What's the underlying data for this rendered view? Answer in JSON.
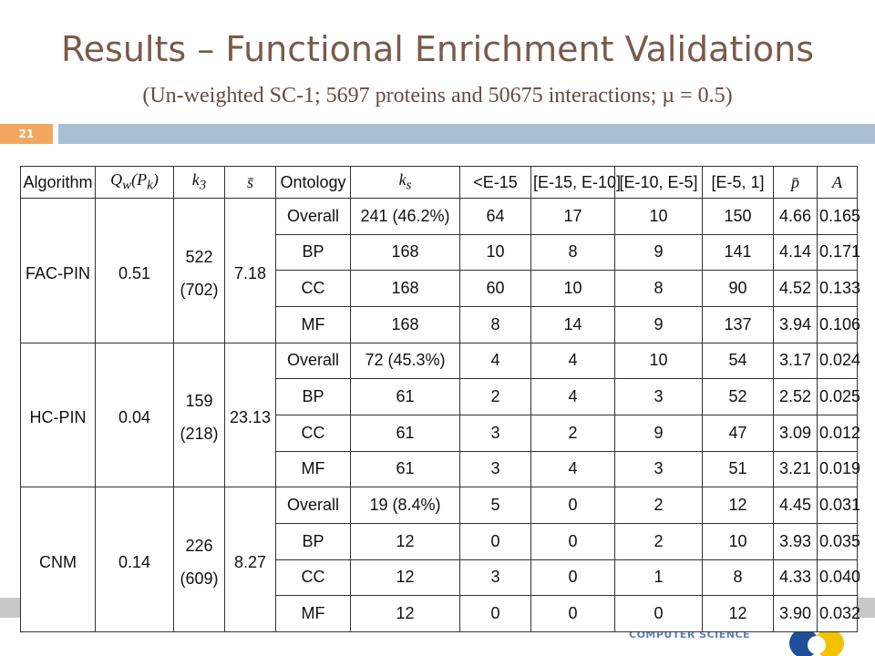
{
  "slide": {
    "title": "Results – Functional Enrichment Validations",
    "subtitle": "(Un-weighted  SC-1;  5697 proteins and 50675 interactions; µ = 0.5)",
    "number": "21",
    "footer_text": "COMPUTER SCIENCE"
  },
  "table": {
    "headers": [
      "Algorithm",
      "Q_w(P_k)",
      "k_3",
      "s̄",
      "Ontology",
      "k_s",
      "<E-15",
      "[E-15, E-10]",
      "[E-10, E-5]",
      "[E-5, 1]",
      "p̄",
      "A"
    ],
    "groups": [
      {
        "algorithm": "FAC-PIN",
        "qw": "0.51",
        "k3": "522",
        "k3b": "(702)",
        "s": "7.18",
        "rows": [
          [
            "Overall",
            "241 (46.2%)",
            "64",
            "17",
            "10",
            "150",
            "4.66",
            "0.165"
          ],
          [
            "BP",
            "168",
            "10",
            "8",
            "9",
            "141",
            "4.14",
            "0.171"
          ],
          [
            "CC",
            "168",
            "60",
            "10",
            "8",
            "90",
            "4.52",
            "0.133"
          ],
          [
            "MF",
            "168",
            "8",
            "14",
            "9",
            "137",
            "3.94",
            "0.106"
          ]
        ]
      },
      {
        "algorithm": "HC-PIN",
        "qw": "0.04",
        "k3": "159",
        "k3b": "(218)",
        "s": "23.13",
        "rows": [
          [
            "Overall",
            "72 (45.3%)",
            "4",
            "4",
            "10",
            "54",
            "3.17",
            "0.024"
          ],
          [
            "BP",
            "61",
            "2",
            "4",
            "3",
            "52",
            "2.52",
            "0.025"
          ],
          [
            "CC",
            "61",
            "3",
            "2",
            "9",
            "47",
            "3.09",
            "0.012"
          ],
          [
            "MF",
            "61",
            "3",
            "4",
            "3",
            "51",
            "3.21",
            "0.019"
          ]
        ]
      },
      {
        "algorithm": "CNM",
        "qw": "0.14",
        "k3": "226",
        "k3b": "(609)",
        "s": "8.27",
        "rows": [
          [
            "Overall",
            "19 (8.4%)",
            "5",
            "0",
            "2",
            "12",
            "4.45",
            "0.031"
          ],
          [
            "BP",
            "12",
            "0",
            "0",
            "2",
            "10",
            "3.93",
            "0.035"
          ],
          [
            "CC",
            "12",
            "3",
            "0",
            "1",
            "8",
            "4.33",
            "0.040"
          ],
          [
            "MF",
            "12",
            "0",
            "0",
            "0",
            "12",
            "3.90",
            "0.032"
          ]
        ]
      }
    ]
  }
}
